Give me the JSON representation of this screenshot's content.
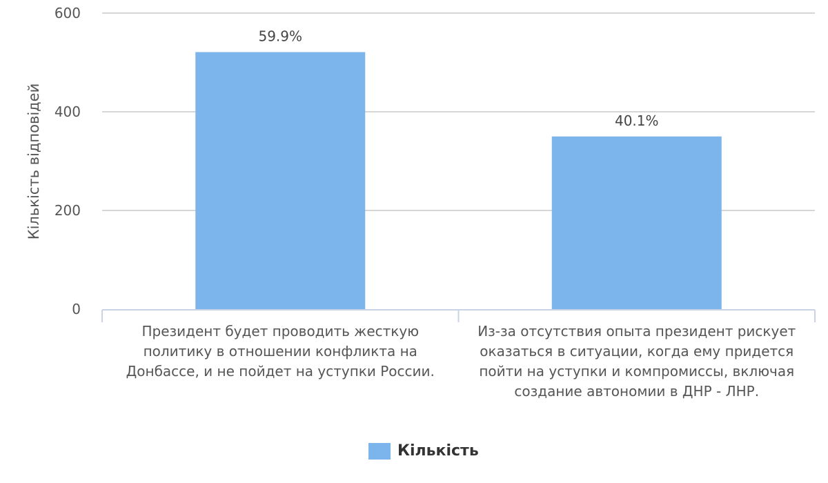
{
  "chart_data": {
    "type": "bar",
    "ylabel": "Кількість відповідей",
    "ylim": [
      0,
      600
    ],
    "yticks": [
      "0",
      "200",
      "400",
      "600"
    ],
    "grid": true,
    "legend_position": "bottom",
    "categories": [
      "Президент будет проводить жесткую политику в отношении конфликта на Донбассе, и не пойдет на уступки России.",
      "Из-за отсутствия опыта президент рискует оказаться в ситуации, когда ему придется пойти на уступки и компромиссы, включая создание автономии в ДНР - ЛНР."
    ],
    "category_lines": [
      [
        "Президент будет проводить жесткую",
        "политику в отношении конфликта на",
        "Донбассе, и не пойдет на уступки России."
      ],
      [
        "Из-за отсутствия опыта президент рискует",
        "оказаться в ситуации, когда ему придется",
        "пойти на уступки и компромиссы, включая",
        "создание автономии в ДНР - ЛНР."
      ]
    ],
    "series": [
      {
        "name": "Кількість",
        "values": [
          521,
          350
        ],
        "labels": [
          "59.9%",
          "40.1%"
        ],
        "color": "#7cb5ec"
      }
    ]
  }
}
